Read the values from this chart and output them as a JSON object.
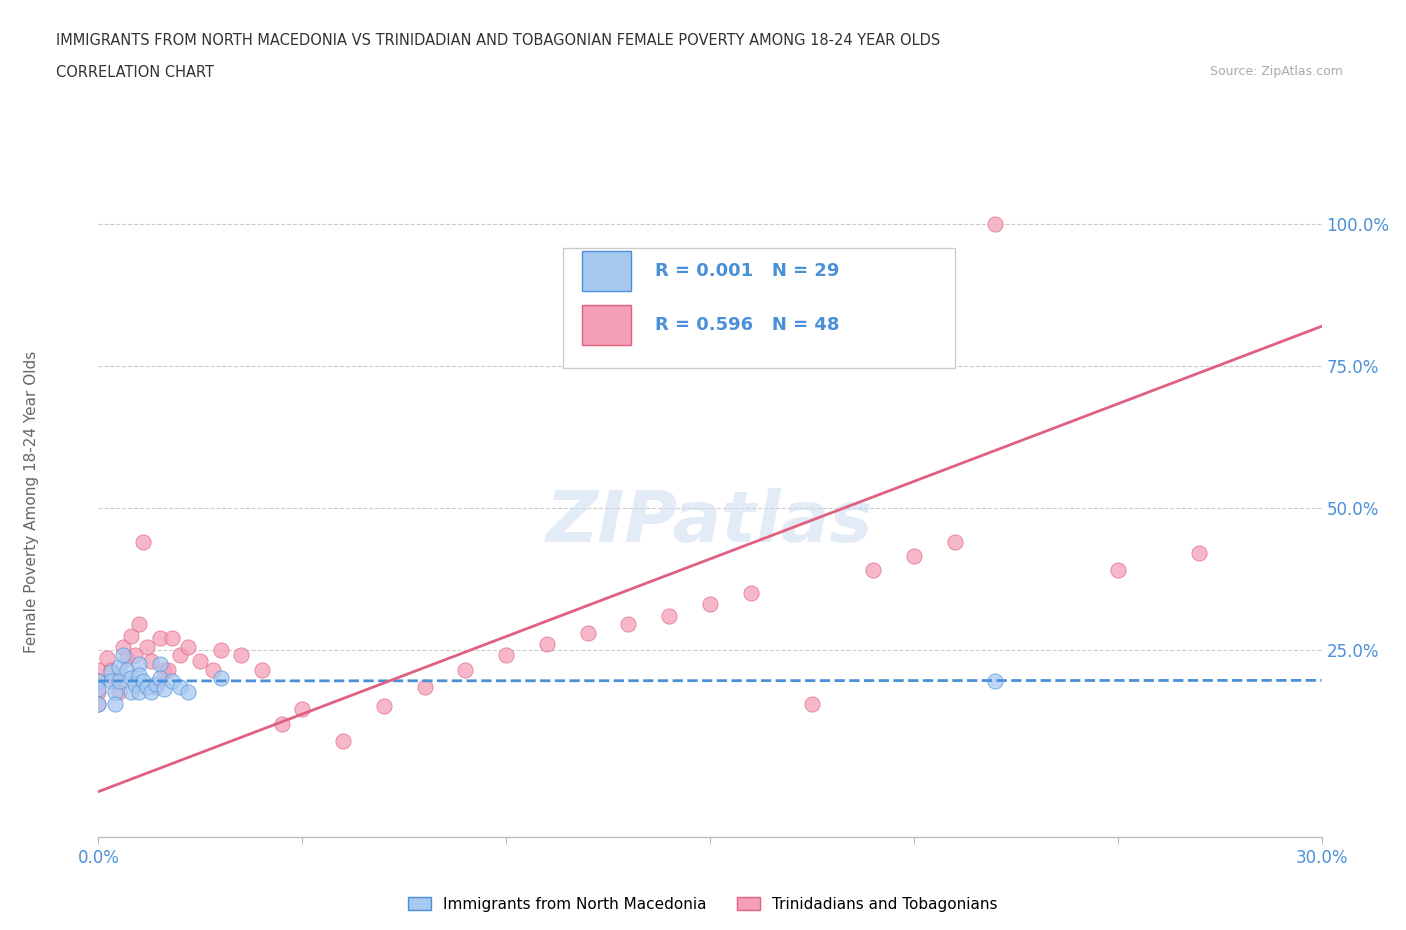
{
  "title_line1": "IMMIGRANTS FROM NORTH MACEDONIA VS TRINIDADIAN AND TOBAGONIAN FEMALE POVERTY AMONG 18-24 YEAR OLDS",
  "title_line2": "CORRELATION CHART",
  "source": "Source: ZipAtlas.com",
  "ylabel": "Female Poverty Among 18-24 Year Olds",
  "xlim": [
    0.0,
    0.3
  ],
  "ylim": [
    -0.08,
    1.1
  ],
  "ytick_labels": [
    "25.0%",
    "50.0%",
    "75.0%",
    "100.0%"
  ],
  "ytick_values": [
    0.25,
    0.5,
    0.75,
    1.0
  ],
  "color_blue": "#a8c8f0",
  "color_pink": "#f4a0b8",
  "color_blue_dark": "#4a90d9",
  "color_pink_dark": "#e06080",
  "color_axis_label": "#4a90d9",
  "blue_scatter_x": [
    0.0,
    0.0,
    0.0,
    0.003,
    0.003,
    0.004,
    0.004,
    0.005,
    0.005,
    0.006,
    0.007,
    0.008,
    0.008,
    0.009,
    0.01,
    0.01,
    0.01,
    0.011,
    0.012,
    0.013,
    0.014,
    0.015,
    0.015,
    0.016,
    0.018,
    0.02,
    0.022,
    0.03,
    0.22
  ],
  "blue_scatter_y": [
    0.195,
    0.18,
    0.155,
    0.21,
    0.195,
    0.175,
    0.155,
    0.22,
    0.195,
    0.24,
    0.215,
    0.2,
    0.175,
    0.19,
    0.225,
    0.205,
    0.175,
    0.195,
    0.185,
    0.175,
    0.19,
    0.225,
    0.2,
    0.18,
    0.195,
    0.185,
    0.175,
    0.2,
    0.195
  ],
  "pink_scatter_x": [
    0.0,
    0.0,
    0.0,
    0.0,
    0.002,
    0.003,
    0.004,
    0.005,
    0.006,
    0.007,
    0.008,
    0.009,
    0.01,
    0.011,
    0.012,
    0.013,
    0.014,
    0.015,
    0.016,
    0.017,
    0.018,
    0.02,
    0.022,
    0.025,
    0.028,
    0.03,
    0.035,
    0.04,
    0.045,
    0.05,
    0.06,
    0.07,
    0.08,
    0.09,
    0.1,
    0.11,
    0.12,
    0.13,
    0.14,
    0.15,
    0.16,
    0.175,
    0.19,
    0.2,
    0.21,
    0.22,
    0.25,
    0.27
  ],
  "pink_scatter_y": [
    0.215,
    0.195,
    0.175,
    0.155,
    0.235,
    0.215,
    0.195,
    0.175,
    0.255,
    0.235,
    0.275,
    0.24,
    0.295,
    0.44,
    0.255,
    0.23,
    0.185,
    0.27,
    0.215,
    0.215,
    0.27,
    0.24,
    0.255,
    0.23,
    0.215,
    0.25,
    0.24,
    0.215,
    0.12,
    0.145,
    0.09,
    0.15,
    0.185,
    0.215,
    0.24,
    0.26,
    0.28,
    0.295,
    0.31,
    0.33,
    0.35,
    0.155,
    0.39,
    0.415,
    0.44,
    1.0,
    0.39,
    0.42
  ],
  "blue_trend_x": [
    0.0,
    0.3
  ],
  "blue_trend_y": [
    0.195,
    0.196
  ],
  "pink_trend_x": [
    0.0,
    0.3
  ],
  "pink_trend_y": [
    0.0,
    0.82
  ]
}
